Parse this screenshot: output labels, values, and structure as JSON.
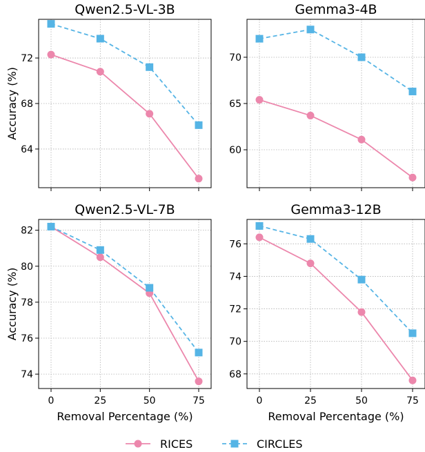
{
  "figure": {
    "legend": [
      {
        "label": "RICES",
        "color": "#ec87ac",
        "marker": "circle",
        "linestyle": "solid"
      },
      {
        "label": "CIRCLES",
        "color": "#55b4e5",
        "marker": "square",
        "linestyle": "dashed"
      }
    ],
    "legend_placement": "bottom-center",
    "grid": true
  },
  "chart_data": [
    {
      "type": "line",
      "title": "Qwen2.5-VL-3B",
      "xlabel": "",
      "ylabel": "Accuracy (%)",
      "x": [
        0,
        25,
        50,
        75
      ],
      "xticks": [
        "0",
        "25",
        "50",
        "75"
      ],
      "ylim": [
        60.6,
        75.4
      ],
      "yticks": [
        64,
        68,
        72
      ],
      "series": [
        {
          "name": "RICES",
          "values": [
            72.3,
            70.8,
            67.1,
            61.4
          ]
        },
        {
          "name": "CIRCLES",
          "values": [
            75.0,
            73.7,
            71.2,
            66.1
          ]
        }
      ]
    },
    {
      "type": "line",
      "title": "Gemma3-4B",
      "xlabel": "",
      "ylabel": "",
      "x": [
        0,
        25,
        50,
        75
      ],
      "xticks": [
        "0",
        "25",
        "50",
        "75"
      ],
      "ylim": [
        55.9,
        74.1
      ],
      "yticks": [
        60,
        65,
        70
      ],
      "series": [
        {
          "name": "RICES",
          "values": [
            65.4,
            63.7,
            61.1,
            57.0
          ]
        },
        {
          "name": "CIRCLES",
          "values": [
            72.0,
            73.0,
            70.0,
            66.3
          ]
        }
      ]
    },
    {
      "type": "line",
      "title": "Qwen2.5-VL-7B",
      "xlabel": "Removal Percentage (%)",
      "ylabel": "Accuracy (%)",
      "x": [
        0,
        25,
        50,
        75
      ],
      "xticks": [
        "0",
        "25",
        "50",
        "75"
      ],
      "ylim": [
        73.2,
        82.6
      ],
      "yticks": [
        74,
        76,
        78,
        80,
        82
      ],
      "series": [
        {
          "name": "RICES",
          "values": [
            82.2,
            80.5,
            78.5,
            73.6
          ]
        },
        {
          "name": "CIRCLES",
          "values": [
            82.2,
            80.9,
            78.8,
            75.2
          ]
        }
      ]
    },
    {
      "type": "line",
      "title": "Gemma3-12B",
      "xlabel": "Removal Percentage (%)",
      "ylabel": "",
      "x": [
        0,
        25,
        50,
        75
      ],
      "xticks": [
        "0",
        "25",
        "50",
        "75"
      ],
      "ylim": [
        67.1,
        77.5
      ],
      "yticks": [
        68,
        70,
        72,
        74,
        76
      ],
      "series": [
        {
          "name": "RICES",
          "values": [
            76.4,
            74.8,
            71.8,
            67.6
          ]
        },
        {
          "name": "CIRCLES",
          "values": [
            77.1,
            76.3,
            73.8,
            70.5
          ]
        }
      ]
    }
  ]
}
